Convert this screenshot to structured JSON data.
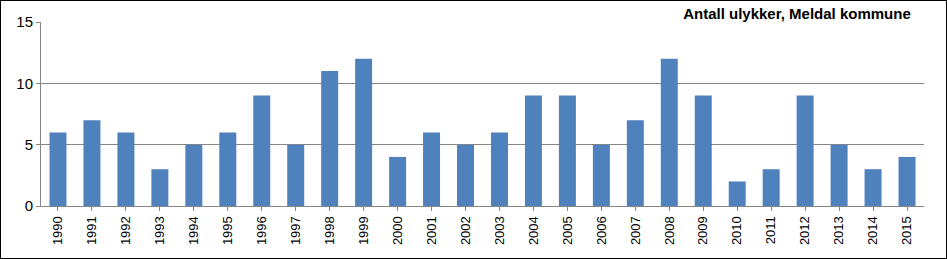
{
  "chart_data": {
    "type": "bar",
    "title": "Antall ulykker, Meldal kommune",
    "categories": [
      "1990",
      "1991",
      "1992",
      "1993",
      "1994",
      "1995",
      "1996",
      "1997",
      "1998",
      "1999",
      "2000",
      "2001",
      "2002",
      "2003",
      "2004",
      "2005",
      "2006",
      "2007",
      "2008",
      "2009",
      "2010",
      "2011",
      "2012",
      "2013",
      "2014",
      "2015"
    ],
    "values": [
      6,
      7,
      6,
      3,
      5,
      6,
      9,
      5,
      11,
      12,
      4,
      6,
      5,
      6,
      9,
      9,
      5,
      7,
      12,
      9,
      2,
      3,
      9,
      5,
      3,
      4
    ],
    "color": "#4f81bd",
    "ylim": [
      0,
      15
    ],
    "yticks": [
      0,
      5,
      10,
      15
    ],
    "grid": true
  }
}
